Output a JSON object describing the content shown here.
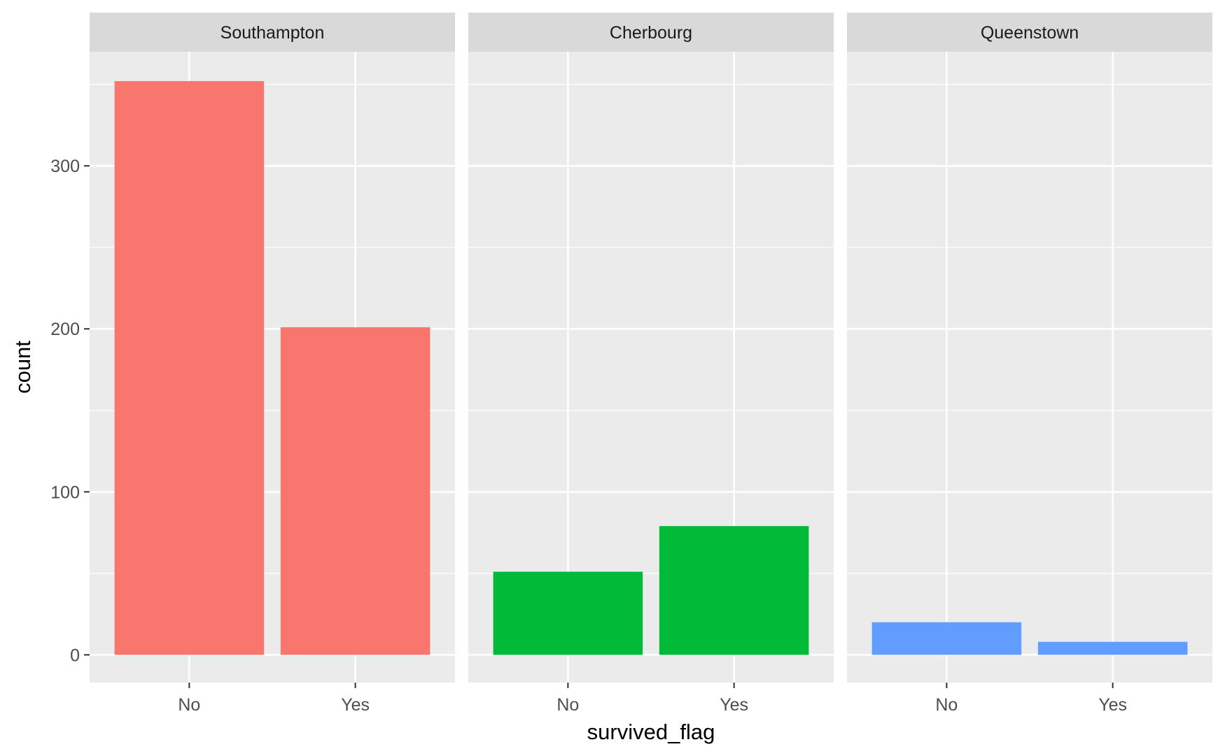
{
  "chart_data": {
    "type": "bar",
    "xlabel": "survived_flag",
    "ylabel": "count",
    "ylim": [
      -17,
      370
    ],
    "yticks": [
      0,
      100,
      200,
      300
    ],
    "categories": [
      "No",
      "Yes"
    ],
    "grid": true,
    "legend": "none",
    "facets": [
      {
        "name": "Southampton",
        "color": "#F8766D",
        "values": [
          352,
          201
        ]
      },
      {
        "name": "Cherbourg",
        "color": "#00BA38",
        "values": [
          51,
          79
        ]
      },
      {
        "name": "Queenstown",
        "color": "#619CFF",
        "values": [
          20,
          8
        ]
      }
    ]
  }
}
